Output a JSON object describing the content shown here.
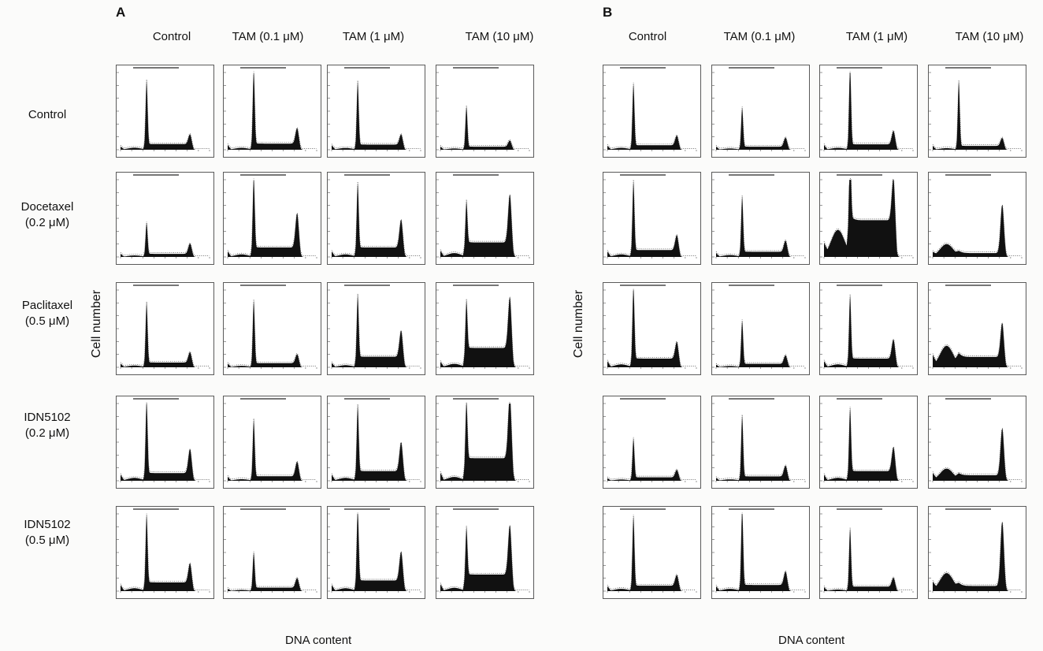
{
  "panels": [
    {
      "letter": "A",
      "columns": [
        "Control",
        "TAM (0.1 μM)",
        "TAM (1 μM)",
        "TAM (10 μM)"
      ],
      "ylabel": "Cell number",
      "xlabel": "DNA content"
    },
    {
      "letter": "B",
      "columns": [
        "Control",
        "TAM (0.1 μM)",
        "TAM (1 μM)",
        "TAM (10 μM)"
      ],
      "ylabel": "Cell number",
      "xlabel": "DNA content"
    }
  ],
  "rows": [
    {
      "line1": "Control",
      "line2": ""
    },
    {
      "line1": "Docetaxel",
      "line2": "(0.2 μM)"
    },
    {
      "line1": "Paclitaxel",
      "line2": "(0.5 μM)"
    },
    {
      "line1": "IDN5102",
      "line2": "(0.2 μM)"
    },
    {
      "line1": "IDN5102",
      "line2": "(0.5 μM)"
    }
  ],
  "chart_data": {
    "type": "area",
    "description_of_axes": "DNA content (x) vs Cell number (y), flow cytometry histograms",
    "x_range": [
      0,
      512
    ],
    "panels": {
      "A": [
        [
          {
            "ymax": 300,
            "g1": 245,
            "g2": 38,
            "sp": 22,
            "sub": 8
          },
          {
            "ymax": 200,
            "g1": 190,
            "g2": 40,
            "sp": 16,
            "sub": 5
          },
          {
            "ymax": 210,
            "g1": 170,
            "g2": 28,
            "sp": 14,
            "sub": 5
          },
          {
            "ymax": 300,
            "g1": 155,
            "g2": 24,
            "sp": 12,
            "sub": 5
          }
        ],
        [
          {
            "ymax": 300,
            "g1": 120,
            "g2": 40,
            "sp": 12,
            "sub": 6
          },
          {
            "ymax": 180,
            "g1": 165,
            "g2": 80,
            "sp": 22,
            "sub": 6
          },
          {
            "ymax": 180,
            "g1": 150,
            "g2": 65,
            "sp": 22,
            "sub": 6
          },
          {
            "ymax": 160,
            "g1": 85,
            "g2": 100,
            "sp": 30,
            "sub": 8
          }
        ],
        [
          {
            "ymax": 260,
            "g1": 200,
            "g2": 35,
            "sp": 16,
            "sub": 6
          },
          {
            "ymax": 260,
            "g1": 210,
            "g2": 30,
            "sp": 14,
            "sub": 5
          },
          {
            "ymax": 220,
            "g1": 175,
            "g2": 75,
            "sp": 30,
            "sub": 6
          },
          {
            "ymax": 180,
            "g1": 110,
            "g2": 120,
            "sp": 45,
            "sub": 8
          }
        ],
        [
          {
            "ymax": 160,
            "g1": 150,
            "g2": 50,
            "sp": 16,
            "sub": 6
          },
          {
            "ymax": 240,
            "g1": 175,
            "g2": 45,
            "sp": 14,
            "sub": 5
          },
          {
            "ymax": 160,
            "g1": 135,
            "g2": 60,
            "sp": 20,
            "sub": 6
          },
          {
            "ymax": 120,
            "g1": 90,
            "g2": 100,
            "sp": 35,
            "sub": 6
          }
        ],
        [
          {
            "ymax": 160,
            "g1": 140,
            "g2": 40,
            "sp": 18,
            "sub": 6
          },
          {
            "ymax": 400,
            "g1": 180,
            "g2": 50,
            "sp": 18,
            "sub": 6
          },
          {
            "ymax": 160,
            "g1": 150,
            "g2": 60,
            "sp": 22,
            "sub": 6
          },
          {
            "ymax": 140,
            "g1": 85,
            "g2": 90,
            "sp": 30,
            "sub": 6
          }
        ]
      ],
      "B": [
        [
          {
            "ymax": 240,
            "g1": 190,
            "g2": 30,
            "sp": 14,
            "sub": 6
          },
          {
            "ymax": 300,
            "g1": 150,
            "g2": 35,
            "sp": 12,
            "sub": 5
          },
          {
            "ymax": 200,
            "g1": 205,
            "g2": 35,
            "sp": 14,
            "sub": 5
          },
          {
            "ymax": 240,
            "g1": 200,
            "g2": 25,
            "sp": 12,
            "sub": 5
          }
        ],
        [
          {
            "ymax": 180,
            "g1": 160,
            "g2": 35,
            "sp": 16,
            "sub": 6
          },
          {
            "ymax": 240,
            "g1": 170,
            "g2": 35,
            "sp": 16,
            "sub": 6
          },
          {
            "ymax": 80,
            "g1": 70,
            "g2": 45,
            "sp": 38,
            "sub": 28
          },
          {
            "ymax": 240,
            "g1": 0,
            "g2": 150,
            "sp": 12,
            "sub": 40
          }
        ],
        [
          {
            "ymax": 160,
            "g1": 150,
            "g2": 35,
            "sp": 18,
            "sub": 6
          },
          {
            "ymax": 360,
            "g1": 200,
            "g2": 40,
            "sp": 16,
            "sub": 6
          },
          {
            "ymax": 160,
            "g1": 130,
            "g2": 40,
            "sp": 18,
            "sub": 6
          },
          {
            "ymax": 90,
            "g1": 0,
            "g2": 40,
            "sp": 12,
            "sub": 25
          }
        ],
        [
          {
            "ymax": 360,
            "g1": 180,
            "g2": 35,
            "sp": 16,
            "sub": 6
          },
          {
            "ymax": 320,
            "g1": 250,
            "g2": 45,
            "sp": 18,
            "sub": 6
          },
          {
            "ymax": 160,
            "g1": 130,
            "g2": 50,
            "sp": 20,
            "sub": 6
          },
          {
            "ymax": 140,
            "g1": 0,
            "g2": 85,
            "sp": 10,
            "sub": 22
          }
        ],
        [
          {
            "ymax": 200,
            "g1": 180,
            "g2": 28,
            "sp": 14,
            "sub": 6
          },
          {
            "ymax": 200,
            "g1": 200,
            "g2": 35,
            "sp": 16,
            "sub": 6
          },
          {
            "ymax": 240,
            "g1": 180,
            "g2": 28,
            "sp": 14,
            "sub": 5
          },
          {
            "ymax": 120,
            "g1": 0,
            "g2": 100,
            "sp": 8,
            "sub": 28
          }
        ]
      ]
    }
  }
}
